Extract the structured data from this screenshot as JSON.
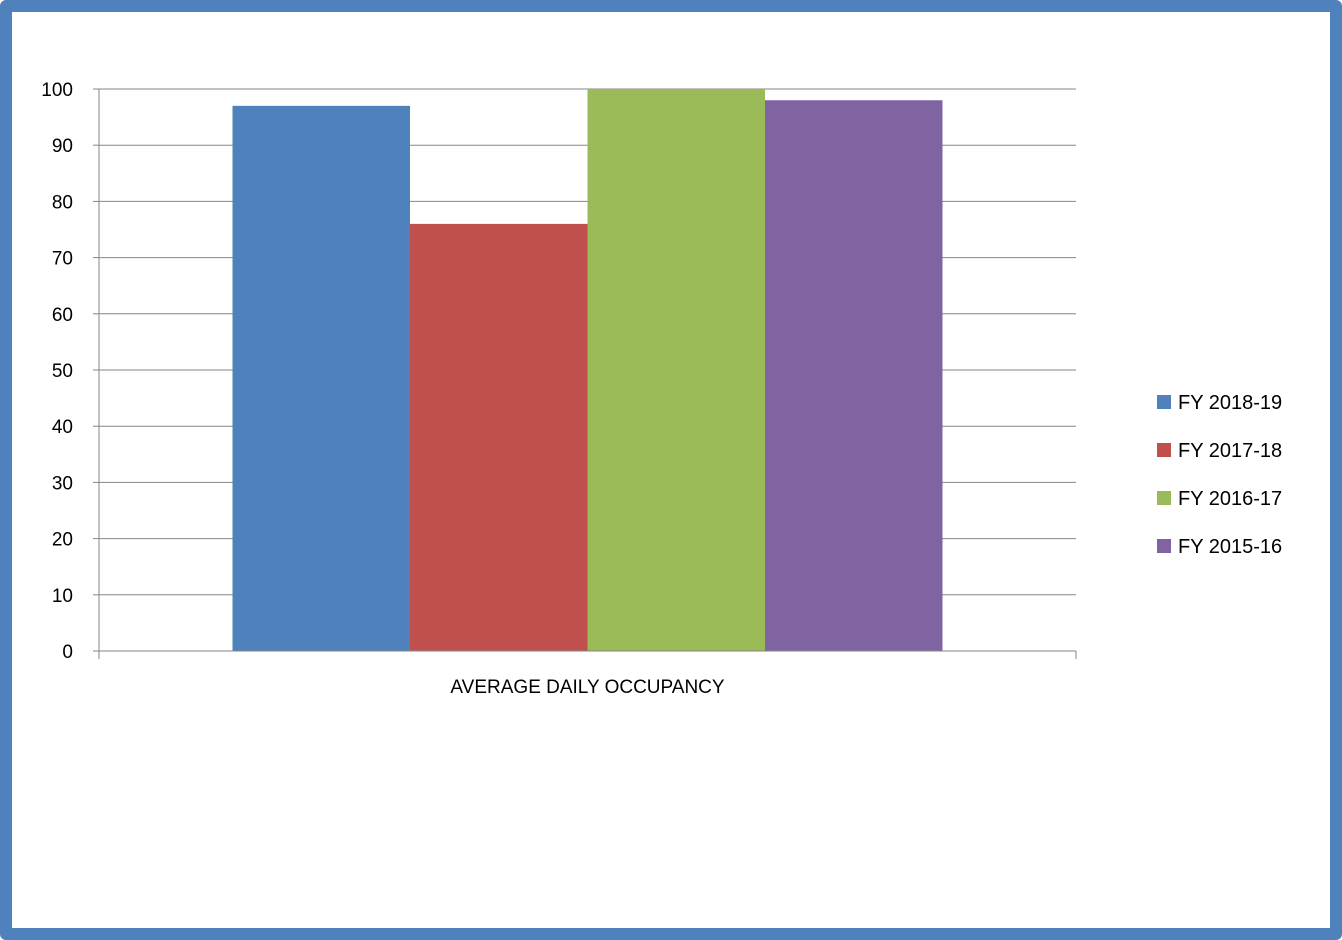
{
  "chart_data": {
    "type": "bar",
    "categories": [
      "AVERAGE DAILY OCCUPANCY"
    ],
    "series": [
      {
        "name": "FY 2018-19",
        "values": [
          97
        ],
        "color": "#4f81bd"
      },
      {
        "name": "FY 2017-18",
        "values": [
          76
        ],
        "color": "#c0504d"
      },
      {
        "name": "FY 2016-17",
        "values": [
          100
        ],
        "color": "#9bbb59"
      },
      {
        "name": "FY 2015-16",
        "values": [
          98
        ],
        "color": "#8064a2"
      }
    ],
    "ylim": [
      0,
      100
    ],
    "yticks": [
      0,
      10,
      20,
      30,
      40,
      50,
      60,
      70,
      80,
      90,
      100
    ],
    "grid": true,
    "legend": "right"
  },
  "colors": {
    "frame_border": "#4f81bd",
    "gridline": "#868686",
    "axis": "#868686"
  }
}
